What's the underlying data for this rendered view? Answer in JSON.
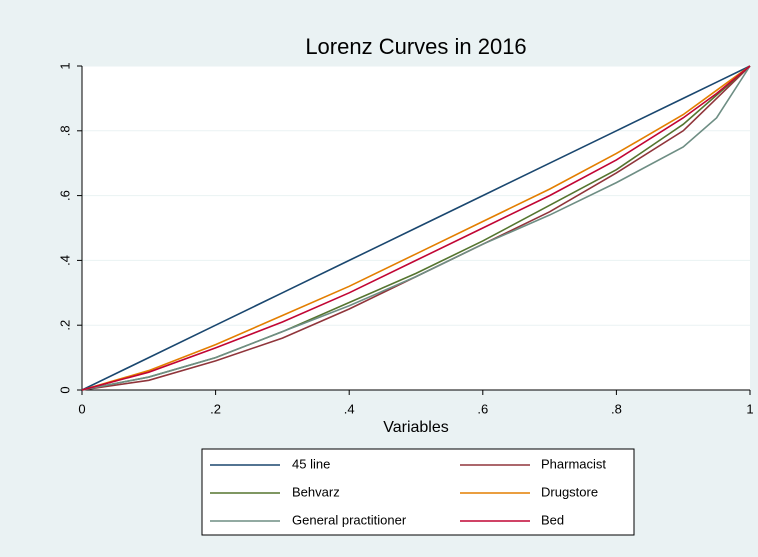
{
  "chart_data": {
    "type": "line",
    "title": "Lorenz Curves in 2016",
    "x_label": "Variables",
    "x": [
      0,
      0.1,
      0.2,
      0.3,
      0.4,
      0.5,
      0.6,
      0.7,
      0.8,
      0.9,
      0.95,
      1
    ],
    "series": [
      {
        "name": "45 line",
        "color": "#1a476f",
        "values": [
          0,
          0.1,
          0.2,
          0.3,
          0.4,
          0.5,
          0.6,
          0.7,
          0.8,
          0.9,
          0.95,
          1
        ]
      },
      {
        "name": "Pharmacist",
        "color": "#90353b",
        "values": [
          0,
          0.03,
          0.09,
          0.16,
          0.25,
          0.35,
          0.45,
          0.55,
          0.67,
          0.8,
          0.9,
          1
        ]
      },
      {
        "name": "Behvarz",
        "color": "#55752f",
        "values": [
          0,
          0.04,
          0.1,
          0.18,
          0.27,
          0.36,
          0.46,
          0.57,
          0.68,
          0.82,
          0.91,
          1
        ]
      },
      {
        "name": "Drugstore",
        "color": "#e37e00",
        "values": [
          0,
          0.06,
          0.14,
          0.23,
          0.32,
          0.42,
          0.52,
          0.62,
          0.73,
          0.85,
          0.925,
          1
        ]
      },
      {
        "name": "General practitioner",
        "color": "#6e8e84",
        "values": [
          0,
          0.04,
          0.1,
          0.18,
          0.26,
          0.35,
          0.45,
          0.54,
          0.64,
          0.75,
          0.84,
          1
        ]
      },
      {
        "name": "Bed",
        "color": "#c10534",
        "values": [
          0,
          0.055,
          0.13,
          0.21,
          0.3,
          0.4,
          0.5,
          0.6,
          0.71,
          0.84,
          0.915,
          1
        ]
      }
    ],
    "xlim": [
      0,
      1
    ],
    "ylim": [
      0,
      1
    ],
    "xticks": [
      0,
      {
        "value": 0.2,
        "label": ".2"
      },
      {
        "value": 0.4,
        "label": ".4"
      },
      {
        "value": 0.6,
        "label": ".6"
      },
      {
        "value": 0.8,
        "label": ".8"
      },
      1
    ],
    "yticks": [
      0,
      {
        "value": 0.2,
        "label": ".2"
      },
      {
        "value": 0.4,
        "label": ".4"
      },
      {
        "value": 0.6,
        "label": ".6"
      },
      {
        "value": 0.8,
        "label": ".8"
      },
      1
    ],
    "grid": true,
    "legend": "bottom"
  }
}
